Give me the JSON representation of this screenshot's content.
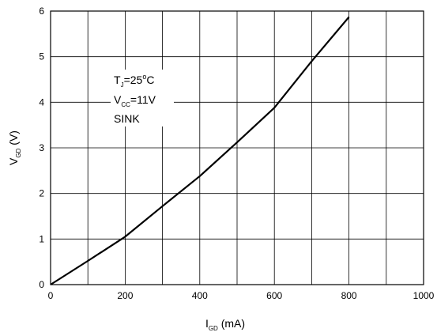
{
  "chart_data": {
    "type": "line",
    "x": [
      0,
      100,
      200,
      300,
      400,
      500,
      600,
      700,
      800
    ],
    "series": [
      {
        "values": [
          0,
          0.52,
          1.05,
          1.72,
          2.38,
          3.12,
          3.88,
          4.9,
          5.87
        ]
      }
    ],
    "xlim": [
      0,
      1000
    ],
    "ylim": [
      0,
      6
    ],
    "xticks": [
      "0",
      "200",
      "400",
      "600",
      "800",
      "1000"
    ],
    "yticks": [
      "0",
      "1",
      "2",
      "3",
      "4",
      "5",
      "6"
    ],
    "xgrid_step": 100,
    "ygrid_step": 1,
    "grid": true,
    "xlabel": {
      "main": "I",
      "sub": "GD",
      "rest": " (mA)"
    },
    "ylabel": {
      "main": "V",
      "sub": "GD",
      "rest": " (V)"
    },
    "annotation": {
      "line1": {
        "main": "T",
        "sub": "J",
        "rest": "=25",
        "sup": "o",
        "unit": "C"
      },
      "line2": {
        "main": "V",
        "sub": "CC",
        "rest": "=11V"
      },
      "line3": "SINK"
    },
    "colors": {
      "line": "#000000",
      "grid": "#000000",
      "background": "#ffffff"
    }
  }
}
